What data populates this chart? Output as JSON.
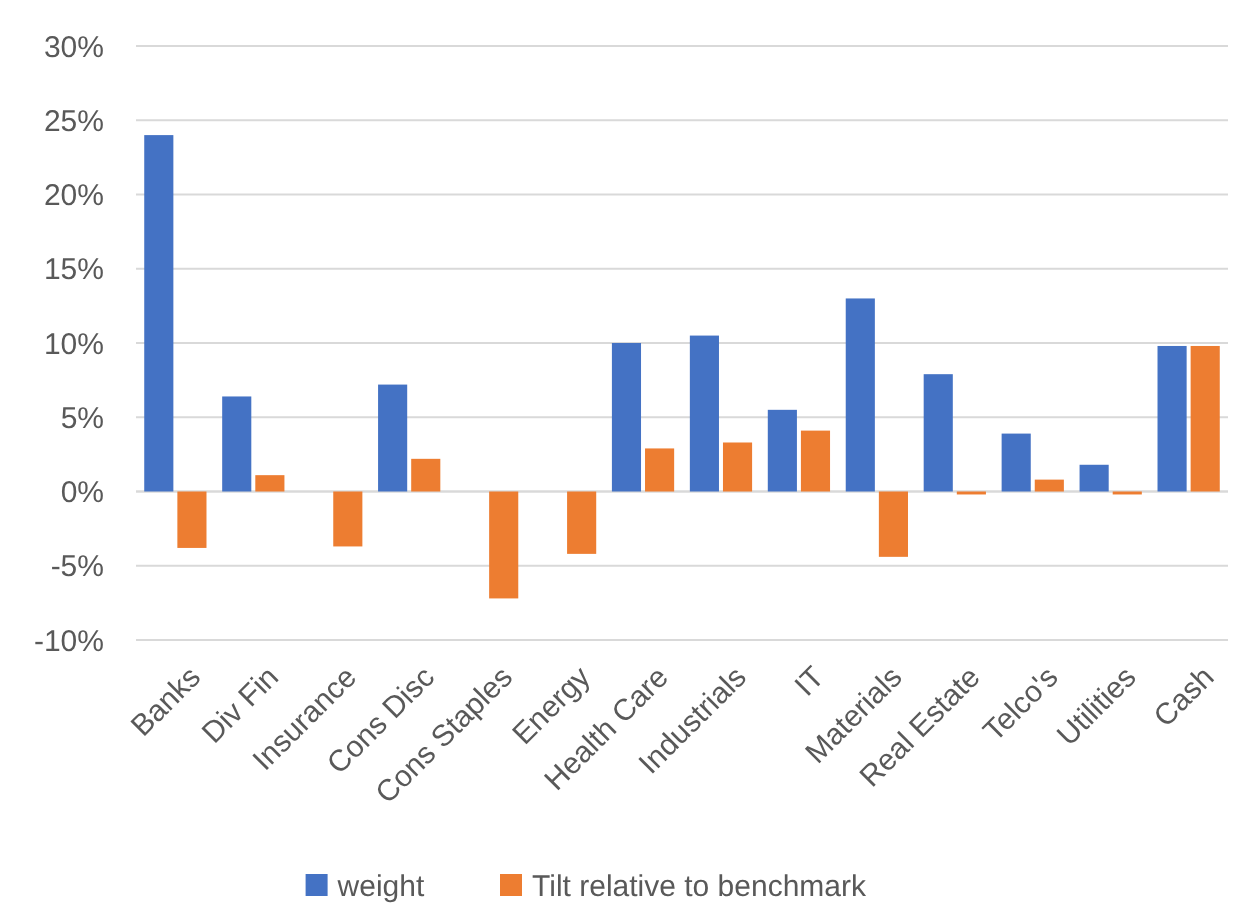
{
  "chart_data": {
    "type": "bar",
    "categories": [
      "Banks",
      "Div Fin",
      "Insurance",
      "Cons Disc",
      "Cons Staples",
      "Energy",
      "Health Care",
      "Industrials",
      "IT",
      "Materials",
      "Real Estate",
      "Telco's",
      "Utilities",
      "Cash"
    ],
    "series": [
      {
        "name": "weight",
        "color": "#4472c4",
        "values": [
          24,
          6.4,
          0,
          7.2,
          0,
          0,
          10,
          10.5,
          5.5,
          13,
          7.9,
          3.9,
          1.8,
          9.8
        ]
      },
      {
        "name": "Tilt relative to benchmark",
        "color": "#ed7d31",
        "values": [
          -3.8,
          1.1,
          -3.7,
          2.2,
          -7.2,
          -4.2,
          2.9,
          3.3,
          4.1,
          -4.4,
          -0.2,
          0.8,
          -0.2,
          9.8
        ]
      }
    ],
    "ylim": [
      -10,
      30
    ],
    "yticks": [
      {
        "value": -10,
        "label": "-10%"
      },
      {
        "value": -5,
        "label": "-5%"
      },
      {
        "value": 0,
        "label": "0%"
      },
      {
        "value": 5,
        "label": "5%"
      },
      {
        "value": 10,
        "label": "10%"
      },
      {
        "value": 15,
        "label": "15%"
      },
      {
        "value": 20,
        "label": "20%"
      },
      {
        "value": 25,
        "label": "25%"
      },
      {
        "value": 30,
        "label": "30%"
      }
    ],
    "grid": "y",
    "legend": "bottom"
  }
}
